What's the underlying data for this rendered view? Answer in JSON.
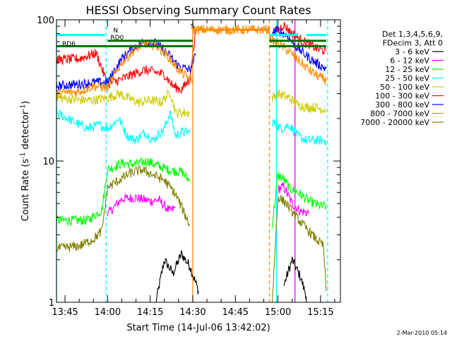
{
  "chart_data": {
    "type": "line",
    "title": "HESSI Observing Summary Count Rates",
    "xlabel": "Start Time (14-Jul-06 13:42:02)",
    "ylabel_main": "Count Rate (s",
    "ylabel_sup1": "-1",
    "ylabel_mid": " detector",
    "ylabel_sup2": "-1",
    "ylabel_end": ")",
    "ylog": true,
    "ylim": [
      1,
      100
    ],
    "xlim_minutes": [
      -3,
      97
    ],
    "x_ticks": [
      {
        "label": "13:45",
        "min": 0
      },
      {
        "label": "14:00",
        "min": 15
      },
      {
        "label": "14:15",
        "min": 30
      },
      {
        "label": "14:30",
        "min": 45
      },
      {
        "label": "14:45",
        "min": 60
      },
      {
        "label": "15:00",
        "min": 75
      },
      {
        "label": "15:15",
        "min": 90
      }
    ],
    "y_major_ticks": [
      {
        "label": "1",
        "value": 1
      },
      {
        "label": "10",
        "value": 10
      },
      {
        "label": "100",
        "value": 100
      }
    ],
    "legend_header": [
      "Det 1,3,4,5,6,9,",
      "FDecim 3, Att 0"
    ],
    "series": [
      {
        "name": "3 - 6 keV",
        "color": "#000000",
        "segments": [
          [
            [
              32,
              1.0
            ],
            [
              35,
              2.0
            ],
            [
              38,
              1.6
            ],
            [
              41,
              2.2
            ],
            [
              44,
              1.8
            ],
            [
              47,
              1.2
            ]
          ],
          [
            [
              77,
              1.3
            ],
            [
              80,
              2.0
            ],
            [
              83,
              1.5
            ],
            [
              85,
              1.1
            ]
          ]
        ]
      },
      {
        "name": "6 - 12 keV",
        "color": "#ff00ff",
        "segments": [
          [
            [
              15,
              4.2
            ],
            [
              20,
              5.4
            ],
            [
              25,
              5.5
            ],
            [
              30,
              5.2
            ],
            [
              33,
              5.3
            ],
            [
              37,
              4.4
            ],
            [
              39,
              4.7
            ]
          ],
          [
            [
              75,
              6.3
            ],
            [
              77,
              6.6
            ],
            [
              80,
              5.0
            ],
            [
              83,
              4.4
            ],
            [
              86,
              4.3
            ]
          ]
        ]
      },
      {
        "name": "12 - 25 keV",
        "color": "#00ff00",
        "segments": [
          [
            [
              -3,
              3.8
            ],
            [
              8,
              3.8
            ],
            [
              13,
              4.5
            ],
            [
              15,
              8.7
            ],
            [
              20,
              9.6
            ],
            [
              25,
              9.5
            ],
            [
              29,
              10.0
            ],
            [
              33,
              9.2
            ],
            [
              37,
              8.6
            ],
            [
              41,
              8.4
            ],
            [
              44,
              7.2
            ]
          ],
          [
            [
              73,
              3.6
            ],
            [
              75,
              7.9
            ],
            [
              77,
              7.5
            ],
            [
              79,
              6.4
            ],
            [
              82,
              6.0
            ],
            [
              86,
              5.2
            ],
            [
              90,
              4.8
            ],
            [
              92,
              4.8
            ]
          ]
        ]
      },
      {
        "name": "25 - 50 keV",
        "color": "#00ffff",
        "segments": [
          [
            [
              -3,
              22
            ],
            [
              3,
              19
            ],
            [
              8,
              17
            ],
            [
              12,
              18
            ],
            [
              15,
              17
            ],
            [
              19,
              20
            ],
            [
              22,
              15
            ],
            [
              25,
              14
            ],
            [
              28,
              16
            ],
            [
              31,
              14
            ],
            [
              35,
              17
            ],
            [
              37,
              22
            ],
            [
              39,
              15
            ],
            [
              41,
              16
            ],
            [
              44,
              16
            ]
          ],
          [
            [
              73,
              19
            ],
            [
              76,
              17
            ],
            [
              79,
              18
            ],
            [
              82,
              15
            ],
            [
              85,
              14
            ],
            [
              88,
              14
            ],
            [
              92,
              14
            ]
          ]
        ]
      },
      {
        "name": "50 - 100 keV",
        "color": "#cccc00",
        "segments": [
          [
            [
              -3,
              28
            ],
            [
              5,
              27
            ],
            [
              10,
              27
            ],
            [
              15,
              28
            ],
            [
              19,
              30
            ],
            [
              22,
              28
            ],
            [
              26,
              26
            ],
            [
              30,
              27
            ],
            [
              34,
              26
            ],
            [
              37,
              31
            ],
            [
              39,
              22
            ],
            [
              41,
              22
            ],
            [
              44,
              22
            ]
          ],
          [
            [
              73,
              28
            ],
            [
              75,
              30
            ],
            [
              79,
              28
            ],
            [
              82,
              25
            ],
            [
              85,
              24
            ],
            [
              88,
              24
            ],
            [
              92,
              23
            ]
          ]
        ]
      },
      {
        "name": "100 - 300 keV",
        "color": "#ff0000",
        "segments": [
          [
            [
              -3,
              52
            ],
            [
              5,
              53
            ],
            [
              11,
              58
            ],
            [
              15,
              35
            ],
            [
              20,
              38
            ],
            [
              25,
              42
            ],
            [
              28,
              44
            ],
            [
              31,
              43
            ],
            [
              35,
              41
            ],
            [
              38,
              34
            ],
            [
              41,
              32
            ],
            [
              44,
              38
            ],
            [
              46,
              85
            ]
          ],
          [
            [
              74,
              82
            ],
            [
              77,
              92
            ],
            [
              80,
              80
            ],
            [
              83,
              72
            ],
            [
              86,
              67
            ],
            [
              89,
              62
            ],
            [
              92,
              60
            ]
          ]
        ]
      },
      {
        "name": "300 - 800 keV",
        "color": "#0000ff",
        "segments": [
          [
            [
              -3,
              34
            ],
            [
              5,
              35
            ],
            [
              10,
              36
            ],
            [
              15,
              36
            ],
            [
              20,
              53
            ],
            [
              24,
              63
            ],
            [
              28,
              70
            ],
            [
              32,
              68
            ],
            [
              36,
              58
            ],
            [
              40,
              47
            ],
            [
              44,
              44
            ],
            [
              46,
              56
            ]
          ],
          [
            [
              73,
              82
            ],
            [
              75,
              84
            ],
            [
              78,
              78
            ],
            [
              81,
              66
            ],
            [
              84,
              58
            ],
            [
              88,
              50
            ],
            [
              92,
              45
            ]
          ]
        ]
      },
      {
        "name": "800 - 7000 keV",
        "color": "#ff8c00",
        "segments": [
          [
            [
              -3,
              30
            ],
            [
              5,
              31
            ],
            [
              10,
              34
            ],
            [
              15,
              33
            ],
            [
              20,
              50
            ],
            [
              24,
              60
            ],
            [
              28,
              68
            ],
            [
              32,
              66
            ],
            [
              36,
              56
            ],
            [
              40,
              44
            ],
            [
              44,
              38
            ],
            [
              45,
              38
            ],
            [
              45,
              85
            ],
            [
              72,
              85
            ],
            [
              72,
              75
            ],
            [
              74,
              70
            ],
            [
              77,
              64
            ],
            [
              80,
              57
            ],
            [
              83,
              50
            ],
            [
              86,
              44
            ],
            [
              89,
              40
            ],
            [
              92,
              37
            ]
          ]
        ]
      },
      {
        "name": "7000 - 20000 keV",
        "color": "#808000",
        "segments": [
          [
            [
              -3,
              2.4
            ],
            [
              5,
              2.5
            ],
            [
              10,
              2.8
            ],
            [
              13,
              3.2
            ],
            [
              15,
              6.5
            ],
            [
              19,
              7.3
            ],
            [
              23,
              8.2
            ],
            [
              27,
              8.7
            ],
            [
              31,
              8.0
            ],
            [
              35,
              7.3
            ],
            [
              39,
              5.8
            ],
            [
              44,
              3.5
            ]
          ],
          [
            [
              73,
              1.0
            ],
            [
              75,
              5.6
            ],
            [
              78,
              5.0
            ],
            [
              81,
              4.1
            ],
            [
              84,
              3.5
            ],
            [
              87,
              3.0
            ],
            [
              91,
              2.5
            ],
            [
              92,
              1.2
            ]
          ]
        ]
      }
    ],
    "status_bars": [
      {
        "label": "N",
        "color": "#00ffff",
        "value": 78,
        "segments": [
          [
            -3,
            14
          ],
          [
            45,
            45
          ],
          [
            72,
            82
          ],
          [
            85,
            92
          ]
        ]
      },
      {
        "label": "RD0",
        "color": "#007000",
        "value": 71,
        "segments": [
          [
            15,
            45
          ],
          [
            72,
            92
          ]
        ]
      },
      {
        "label": "RD6",
        "color": "#007000",
        "value": 65,
        "segments": [
          [
            -3,
            15
          ],
          [
            15,
            45
          ],
          [
            72,
            92
          ]
        ]
      },
      {
        "label": "S",
        "color": "#ff8c00",
        "value": 85,
        "segments": [
          [
            45,
            72
          ]
        ]
      }
    ],
    "vlines": [
      {
        "min": -3,
        "color": "#00ffff",
        "style": "solid"
      },
      {
        "min": 14.5,
        "color": "#00ffff",
        "style": "dashed"
      },
      {
        "min": 45,
        "color": "#ff8c00",
        "style": "solid"
      },
      {
        "min": 72,
        "color": "#ff8c00",
        "style": "dashed"
      },
      {
        "min": 74.5,
        "color": "#00ffff",
        "style": "solid"
      },
      {
        "min": 81,
        "color": "#ff00ff",
        "style": "solid"
      },
      {
        "min": 92.5,
        "color": "#00ffff",
        "style": "dashed"
      }
    ]
  },
  "footer_date": "2-Mar-2010 05:14"
}
